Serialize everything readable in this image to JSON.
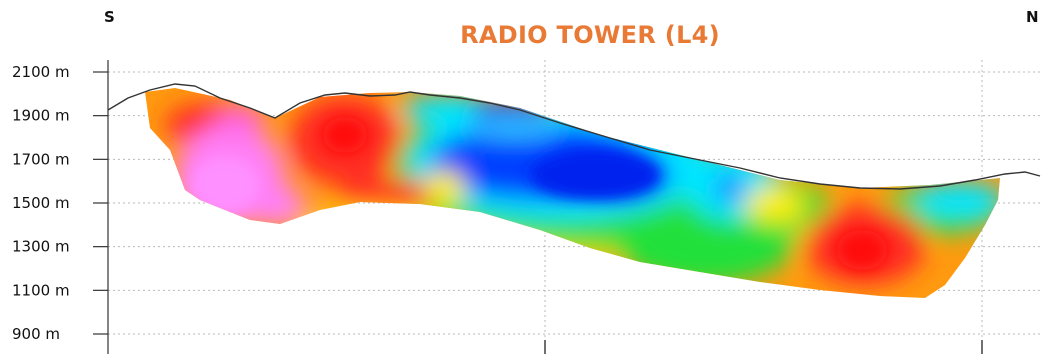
{
  "chart_data": {
    "type": "heatmap",
    "title": "RADIO TOWER (L4)",
    "direction_left": "S",
    "direction_right": "N",
    "ylabel": "",
    "xlabel": "",
    "ylim": [
      850,
      2200
    ],
    "yticks": [
      "2100 m",
      "1900 m",
      "1700 m",
      "1500 m",
      "1300 m",
      "1100 m",
      "900 m"
    ],
    "ytick_values": [
      2100,
      1900,
      1700,
      1500,
      1300,
      1100,
      900
    ],
    "grid": true,
    "colorscale": [
      "#ff80ff",
      "#ff2020",
      "#ff8c00",
      "#ffee00",
      "#33dd33",
      "#00e5ff",
      "#0030ff"
    ]
  }
}
